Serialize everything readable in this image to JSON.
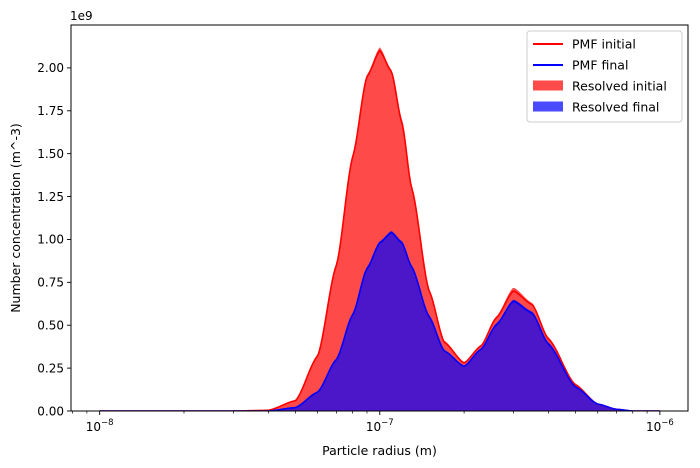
{
  "chart_data": {
    "type": "area",
    "title": "",
    "xlabel": "Particle radius (m)",
    "ylabel": "Number concentration (m^-3)",
    "y_offset_label": "1e9",
    "x_scale": "log",
    "xlim": [
      7.9e-09,
      1.26e-06
    ],
    "ylim": [
      0,
      2.25
    ],
    "y_multiplier": 1000000000,
    "grid": false,
    "legend_position": "top-right",
    "x_ticks": [
      {
        "value": 1e-08,
        "base": "10",
        "exp": "−8"
      },
      {
        "value": 1e-07,
        "base": "10",
        "exp": "−7"
      },
      {
        "value": 1e-06,
        "base": "10",
        "exp": "−6"
      }
    ],
    "y_ticks": [
      "0.00",
      "0.25",
      "0.50",
      "0.75",
      "1.00",
      "1.25",
      "1.50",
      "1.75",
      "2.00"
    ],
    "x": [
      1e-08,
      2e-08,
      3e-08,
      4e-08,
      5e-08,
      6e-08,
      7e-08,
      8e-08,
      9e-08,
      1e-07,
      1.1e-07,
      1.2e-07,
      1.3e-07,
      1.5e-07,
      1.7e-07,
      2e-07,
      2.3e-07,
      2.6e-07,
      3e-07,
      3.5e-07,
      4e-07,
      5e-07,
      6e-07,
      7e-07,
      8e-07,
      1e-06
    ],
    "series": [
      {
        "name": "PMF initial",
        "kind": "line",
        "color": "#ff0000",
        "values": [
          0.0,
          0.0,
          0.0,
          0.004,
          0.06,
          0.32,
          0.85,
          1.48,
          1.95,
          2.1,
          1.98,
          1.68,
          1.3,
          0.7,
          0.4,
          0.28,
          0.38,
          0.54,
          0.7,
          0.62,
          0.42,
          0.15,
          0.04,
          0.01,
          0.0,
          0.0
        ]
      },
      {
        "name": "PMF final",
        "kind": "line",
        "color": "#0000ff",
        "values": [
          0.0,
          0.0,
          0.0,
          0.0,
          0.02,
          0.11,
          0.3,
          0.56,
          0.83,
          0.98,
          1.04,
          0.98,
          0.84,
          0.55,
          0.35,
          0.26,
          0.36,
          0.5,
          0.64,
          0.57,
          0.39,
          0.14,
          0.04,
          0.01,
          0.0,
          0.0
        ]
      },
      {
        "name": "Resolved initial",
        "kind": "fill",
        "color": "#ff4a4a",
        "values": [
          0.0,
          0.0,
          0.0,
          0.004,
          0.06,
          0.33,
          0.86,
          1.5,
          1.96,
          2.12,
          1.99,
          1.7,
          1.31,
          0.71,
          0.41,
          0.28,
          0.38,
          0.55,
          0.72,
          0.63,
          0.43,
          0.16,
          0.04,
          0.01,
          0.0,
          0.0
        ]
      },
      {
        "name": "Resolved final",
        "kind": "fill",
        "color": "#4a4aff",
        "values": [
          0.0,
          0.0,
          0.0,
          0.0,
          0.02,
          0.11,
          0.3,
          0.57,
          0.84,
          0.99,
          1.05,
          0.99,
          0.85,
          0.56,
          0.35,
          0.26,
          0.36,
          0.51,
          0.65,
          0.58,
          0.4,
          0.14,
          0.04,
          0.01,
          0.0,
          0.0
        ]
      }
    ],
    "overlap_color": "#4b17c8"
  }
}
